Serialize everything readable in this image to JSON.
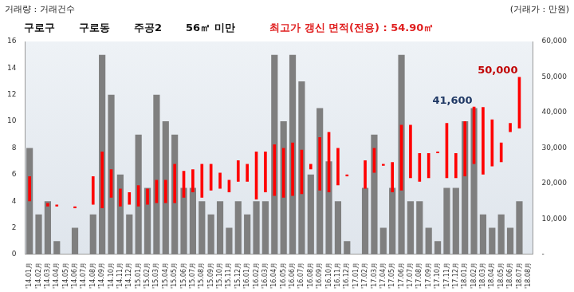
{
  "chart_data": {
    "type": "bar",
    "title": [
      "구로구",
      "구로동",
      "주공2",
      "56㎡ 미만"
    ],
    "subtitle": "최고가 갱신 면적(전용) : 54.90㎡",
    "y_label": "거래량 : 거래건수",
    "y2_label": "(거래가 : 만원)",
    "categories": [
      "'14.01月",
      "'14.02月",
      "'14.03月",
      "'14.04月",
      "'14.05月",
      "'14.06月",
      "'14.07月",
      "'14.08月",
      "'14.09月",
      "'14.10月",
      "'14.11月",
      "'14.12月",
      "'15.01月",
      "'15.02月",
      "'15.03月",
      "'15.04月",
      "'15.05月",
      "'15.06月",
      "'15.07月",
      "'15.08月",
      "'15.09月",
      "'15.10月",
      "'15.11月",
      "'15.12月",
      "'16.01月",
      "'16.02月",
      "'16.03月",
      "'16.04月",
      "'16.05月",
      "'16.06月",
      "'16.07月",
      "'16.08月",
      "'16.09月",
      "'16.10月",
      "'16.11月",
      "'16.12月",
      "'17.01月",
      "'17.02月",
      "'17.03月",
      "'17.04月",
      "'17.05月",
      "'17.06月",
      "'17.07月",
      "'17.08月",
      "'17.09月",
      "'17.10月",
      "'17.11月",
      "'17.12月",
      "'18.01月",
      "'18.02月",
      "'18.03月",
      "'18.04月",
      "'18.05月",
      "'18.06月",
      "'18.07月",
      "'18.08月"
    ],
    "series": [
      {
        "type": "bar",
        "color": "#7f7f7f",
        "values": [
          8,
          3,
          4,
          1,
          0,
          2,
          0,
          3,
          15,
          12,
          6,
          3,
          9,
          5,
          12,
          10,
          9,
          5,
          5,
          4,
          3,
          4,
          2,
          4,
          3,
          4,
          4,
          15,
          10,
          15,
          13,
          6,
          11,
          7,
          4,
          1,
          0,
          5,
          9,
          2,
          5,
          15,
          4,
          4,
          2,
          1,
          5,
          5,
          10,
          11,
          3,
          2,
          3,
          2,
          4,
          0
        ]
      },
      {
        "type": "floating_bar",
        "axis": "y2",
        "color": "#ff0000",
        "values": [
          [
            15000,
            22000
          ],
          null,
          [
            13500,
            14500
          ],
          [
            13500,
            14000
          ],
          null,
          [
            13000,
            13500
          ],
          null,
          [
            14000,
            22000
          ],
          [
            13000,
            29000
          ],
          [
            16000,
            24000
          ],
          [
            13500,
            18500
          ],
          [
            14000,
            17500
          ],
          [
            13500,
            19500
          ],
          [
            14000,
            18500
          ],
          [
            14500,
            21000
          ],
          [
            14500,
            21000
          ],
          [
            14500,
            25500
          ],
          [
            16000,
            23500
          ],
          [
            17500,
            24000
          ],
          [
            16000,
            25500
          ],
          [
            18000,
            25500
          ],
          [
            18500,
            23000
          ],
          [
            17500,
            21000
          ],
          [
            20500,
            26500
          ],
          [
            20500,
            25500
          ],
          [
            15500,
            29000
          ],
          [
            17500,
            29000
          ],
          [
            16500,
            31000
          ],
          [
            16000,
            30000
          ],
          [
            16500,
            31500
          ],
          [
            17000,
            29500
          ],
          [
            24000,
            25500
          ],
          [
            18000,
            33000
          ],
          [
            17500,
            34500
          ],
          [
            19500,
            30000
          ],
          [
            22000,
            22500
          ],
          null,
          [
            18500,
            26500
          ],
          [
            23000,
            30000
          ],
          [
            25000,
            25500
          ],
          [
            17500,
            26000
          ],
          [
            18000,
            36500
          ],
          [
            21500,
            36500
          ],
          [
            20500,
            28500
          ],
          [
            21500,
            28500
          ],
          [
            28500,
            29000
          ],
          [
            21500,
            37000
          ],
          [
            21500,
            28500
          ],
          [
            22000,
            37500
          ],
          [
            25500,
            41600
          ],
          [
            22500,
            41500
          ],
          [
            24800,
            38000
          ],
          [
            26000,
            31500
          ],
          [
            34500,
            37000
          ],
          [
            35500,
            50000
          ],
          null
        ]
      }
    ],
    "ylim": [
      0,
      16
    ],
    "yticks": [
      0,
      2,
      4,
      6,
      8,
      10,
      12,
      14,
      16
    ],
    "y2lim": [
      0,
      60000
    ],
    "y2ticks": [
      {
        "value": 0,
        "label": "-"
      },
      {
        "value": 10000,
        "label": "10,000"
      },
      {
        "value": 20000,
        "label": "20,000"
      },
      {
        "value": 30000,
        "label": "30,000"
      },
      {
        "value": 40000,
        "label": "40,000"
      },
      {
        "value": 50000,
        "label": "50,000"
      },
      {
        "value": 60000,
        "label": "60,000"
      }
    ],
    "grid": false,
    "annotations": [
      {
        "category": "'18.02月",
        "value": 41600,
        "label": "41,600",
        "color": "#1f3864"
      },
      {
        "category": "'18.07月",
        "value": 50000,
        "label": "50,000",
        "color": "#c00000"
      }
    ]
  }
}
